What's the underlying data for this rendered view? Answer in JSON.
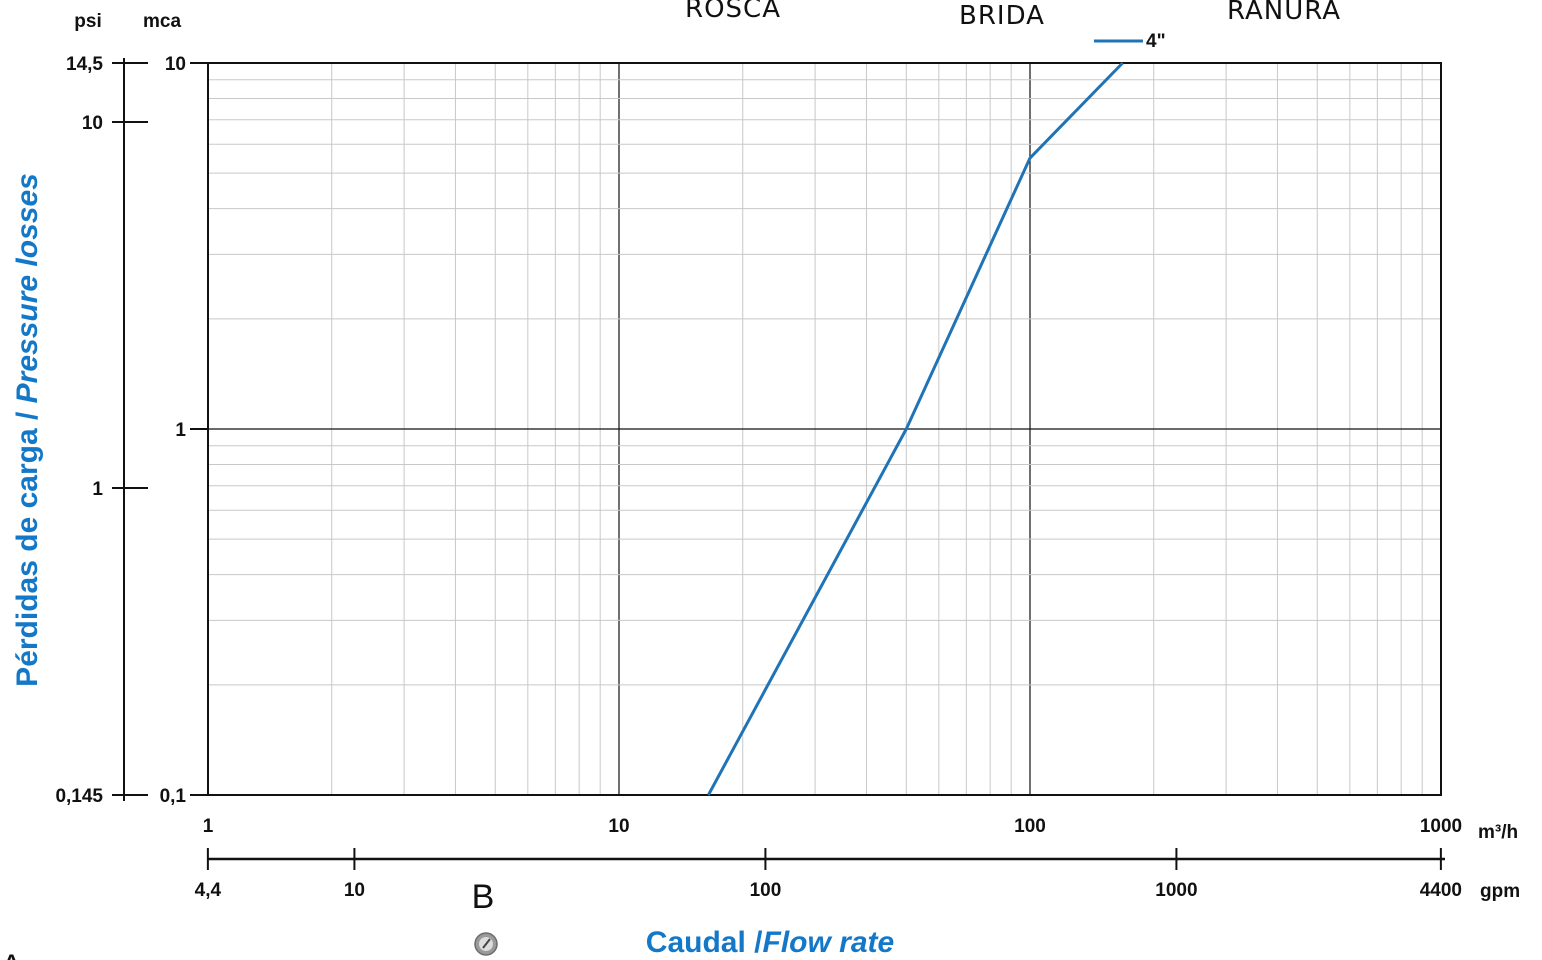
{
  "chart_data": {
    "type": "line",
    "x_scale": "log",
    "y_scale": "log",
    "header_labels": [
      "ROSCA",
      "BRIDA",
      "RANURA"
    ],
    "ylabel": {
      "part1": "Pérdidas de carga / ",
      "part2": "Pressure losses"
    },
    "xlabel": {
      "part1": "Caudal /",
      "part2": "Flow rate"
    },
    "y_unit_labels": {
      "left": "psi",
      "right": "mca"
    },
    "x_unit_labels": {
      "top": "m³/h",
      "bottom": "gpm"
    },
    "xlim": [
      1,
      1000
    ],
    "ylim": [
      0.1,
      10
    ],
    "x_ticks": [
      "1",
      "10",
      "100",
      "1000"
    ],
    "y_ticks_mca": [
      "0,1",
      "1",
      "10"
    ],
    "y_ticks_psi": [
      "0,145",
      "1",
      "10",
      "14,5"
    ],
    "gpm_ticks": [
      "4,4",
      "10",
      "100",
      "1000",
      "4400"
    ],
    "grid": true,
    "series": [
      {
        "name": "4\"",
        "color": "#1f73b7",
        "x": [
          16.5,
          50,
          100,
          168
        ],
        "y": [
          0.1,
          1.0,
          5.5,
          10
        ]
      }
    ],
    "stray_labels": [
      "B",
      "A"
    ]
  },
  "colors": {
    "accent": "#1478c8",
    "series": "#1f73b7",
    "grid": "#c8c8c8"
  },
  "icons": [
    "gauge-icon"
  ]
}
